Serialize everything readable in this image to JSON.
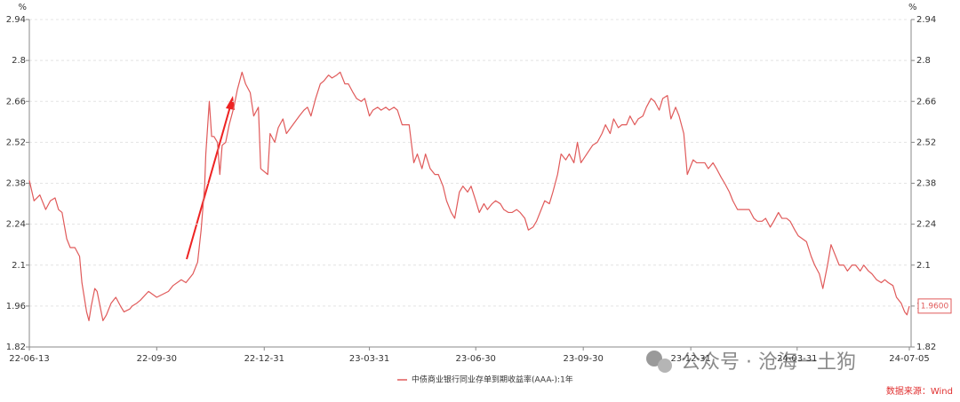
{
  "chart_data": {
    "type": "line",
    "y_unit": "%",
    "y2_unit": "%",
    "x": [
      "22-06-13",
      "22-06-17",
      "22-06-22",
      "22-06-27",
      "22-07-01",
      "22-07-05",
      "22-07-08",
      "22-07-11",
      "22-07-15",
      "22-07-18",
      "22-07-22",
      "22-07-26",
      "22-07-28",
      "22-08-01",
      "22-08-03",
      "22-08-05",
      "22-08-08",
      "22-08-10",
      "22-08-15",
      "22-08-18",
      "22-08-22",
      "22-08-26",
      "22-08-30",
      "22-09-02",
      "22-09-07",
      "22-09-09",
      "22-09-13",
      "22-09-16",
      "22-09-23",
      "22-09-30",
      "22-10-10",
      "22-10-14",
      "22-10-21",
      "22-10-25",
      "22-10-31",
      "22-11-04",
      "22-11-07",
      "22-11-10",
      "22-11-11",
      "22-11-14",
      "22-11-16",
      "22-11-18",
      "22-11-21",
      "22-11-23",
      "22-11-25",
      "22-11-28",
      "22-12-01",
      "22-12-05",
      "22-12-08",
      "22-12-12",
      "22-12-15",
      "22-12-19",
      "22-12-22",
      "22-12-26",
      "22-12-28",
      "23-01-03",
      "23-01-05",
      "23-01-09",
      "23-01-12",
      "23-01-16",
      "23-01-19",
      "23-01-30",
      "23-02-03",
      "23-02-06",
      "23-02-09",
      "23-02-13",
      "23-02-17",
      "23-02-20",
      "23-02-24",
      "23-02-27",
      "23-03-03",
      "23-03-06",
      "23-03-10",
      "23-03-13",
      "23-03-17",
      "23-03-20",
      "23-03-24",
      "23-03-27",
      "23-03-31",
      "23-04-03",
      "23-04-07",
      "23-04-10",
      "23-04-14",
      "23-04-17",
      "23-04-21",
      "23-04-24",
      "23-04-28",
      "23-05-04",
      "23-05-08",
      "23-05-11",
      "23-05-15",
      "23-05-18",
      "23-05-22",
      "23-05-26",
      "23-05-29",
      "23-06-02",
      "23-06-05",
      "23-06-09",
      "23-06-12",
      "23-06-16",
      "23-06-19",
      "23-06-23",
      "23-06-26",
      "23-06-30",
      "23-07-03",
      "23-07-07",
      "23-07-10",
      "23-07-14",
      "23-07-17",
      "23-07-21",
      "23-07-24",
      "23-07-28",
      "23-07-31",
      "23-08-04",
      "23-08-07",
      "23-08-11",
      "23-08-14",
      "23-08-18",
      "23-08-21",
      "23-08-25",
      "23-08-28",
      "23-09-01",
      "23-09-04",
      "23-09-08",
      "23-09-11",
      "23-09-15",
      "23-09-18",
      "23-09-22",
      "23-09-25",
      "23-09-28",
      "23-10-08",
      "23-10-12",
      "23-10-16",
      "23-10-19",
      "23-10-23",
      "23-10-26",
      "23-10-30",
      "23-11-02",
      "23-11-06",
      "23-11-09",
      "23-11-13",
      "23-11-16",
      "23-11-20",
      "23-11-23",
      "23-11-27",
      "23-11-30",
      "23-12-04",
      "23-12-07",
      "23-12-11",
      "23-12-14",
      "23-12-18",
      "23-12-21",
      "23-12-25",
      "23-12-28",
      "24-01-02",
      "24-01-05",
      "24-01-08",
      "24-01-12",
      "24-01-15",
      "24-01-19",
      "24-01-22",
      "24-01-26",
      "24-01-29",
      "24-02-02",
      "24-02-05",
      "24-02-09",
      "24-02-19",
      "24-02-23",
      "24-02-26",
      "24-03-01",
      "24-03-04",
      "24-03-08",
      "24-03-11",
      "24-03-15",
      "24-03-18",
      "24-03-22",
      "24-03-25",
      "24-03-29",
      "24-04-01",
      "24-04-08",
      "24-04-12",
      "24-04-15",
      "24-04-19",
      "24-04-22",
      "24-04-26",
      "24-04-29",
      "24-05-06",
      "24-05-10",
      "24-05-13",
      "24-05-17",
      "24-05-20",
      "24-05-24",
      "24-05-27",
      "24-05-31",
      "24-06-03",
      "24-06-07",
      "24-06-11",
      "24-06-14",
      "24-06-17",
      "24-06-21",
      "24-06-24",
      "24-06-28",
      "24-07-01",
      "24-07-03",
      "24-07-05"
    ],
    "series": [
      {
        "name": "中债商业银行同业存单到期收益率(AAA-):1年",
        "color": "#e05a5a",
        "values": [
          2.39,
          2.32,
          2.34,
          2.29,
          2.32,
          2.33,
          2.29,
          2.28,
          2.19,
          2.16,
          2.16,
          2.13,
          2.04,
          1.94,
          1.91,
          1.96,
          2.02,
          2.01,
          1.91,
          1.93,
          1.97,
          1.99,
          1.96,
          1.94,
          1.95,
          1.96,
          1.97,
          1.98,
          2.01,
          1.99,
          2.01,
          2.03,
          2.05,
          2.04,
          2.07,
          2.11,
          2.22,
          2.37,
          2.48,
          2.66,
          2.54,
          2.54,
          2.52,
          2.41,
          2.51,
          2.52,
          2.58,
          2.64,
          2.7,
          2.76,
          2.72,
          2.69,
          2.61,
          2.64,
          2.43,
          2.41,
          2.55,
          2.52,
          2.57,
          2.6,
          2.55,
          2.61,
          2.63,
          2.64,
          2.61,
          2.67,
          2.72,
          2.73,
          2.75,
          2.74,
          2.75,
          2.76,
          2.72,
          2.72,
          2.69,
          2.67,
          2.66,
          2.67,
          2.61,
          2.63,
          2.64,
          2.63,
          2.64,
          2.63,
          2.64,
          2.63,
          2.58,
          2.58,
          2.45,
          2.48,
          2.43,
          2.48,
          2.43,
          2.41,
          2.41,
          2.37,
          2.32,
          2.28,
          2.26,
          2.35,
          2.37,
          2.35,
          2.37,
          2.32,
          2.28,
          2.31,
          2.29,
          2.31,
          2.32,
          2.31,
          2.29,
          2.28,
          2.28,
          2.29,
          2.28,
          2.26,
          2.22,
          2.23,
          2.25,
          2.29,
          2.32,
          2.31,
          2.35,
          2.41,
          2.48,
          2.46,
          2.48,
          2.45,
          2.52,
          2.45,
          2.51,
          2.52,
          2.55,
          2.58,
          2.55,
          2.6,
          2.57,
          2.58,
          2.58,
          2.61,
          2.58,
          2.6,
          2.61,
          2.64,
          2.67,
          2.66,
          2.63,
          2.67,
          2.68,
          2.6,
          2.64,
          2.61,
          2.55,
          2.41,
          2.46,
          2.45,
          2.45,
          2.45,
          2.43,
          2.45,
          2.43,
          2.4,
          2.38,
          2.35,
          2.32,
          2.29,
          2.29,
          2.26,
          2.25,
          2.25,
          2.26,
          2.23,
          2.25,
          2.28,
          2.26,
          2.26,
          2.25,
          2.22,
          2.2,
          2.18,
          2.13,
          2.1,
          2.07,
          2.02,
          2.1,
          2.17,
          2.1,
          2.1,
          2.08,
          2.1,
          2.1,
          2.08,
          2.1,
          2.08,
          2.07,
          2.05,
          2.04,
          2.05,
          2.04,
          2.03,
          1.99,
          1.97,
          1.94,
          1.93,
          1.96
        ]
      }
    ],
    "end_label": "1.9600",
    "xlim": [
      "22-06-13",
      "24-07-05"
    ],
    "xticks": [
      "22-06-13",
      "22-09-30",
      "22-12-31",
      "23-03-31",
      "23-06-30",
      "23-09-30",
      "23-12-31",
      "24-03-31",
      "24-07-05"
    ],
    "ylim": [
      1.82,
      2.94
    ],
    "yticks": [
      1.82,
      1.96,
      2.1,
      2.24,
      2.38,
      2.52,
      2.66,
      2.8,
      2.94
    ],
    "y2lim": [
      1.82,
      2.94
    ],
    "y2ticks": [
      1.82,
      1.96,
      2.1,
      2.24,
      2.38,
      2.52,
      2.66,
      2.8,
      2.94
    ],
    "grid": true,
    "watermark": "公众号 · 沧海一土狗",
    "source": "数据来源：Wind"
  }
}
